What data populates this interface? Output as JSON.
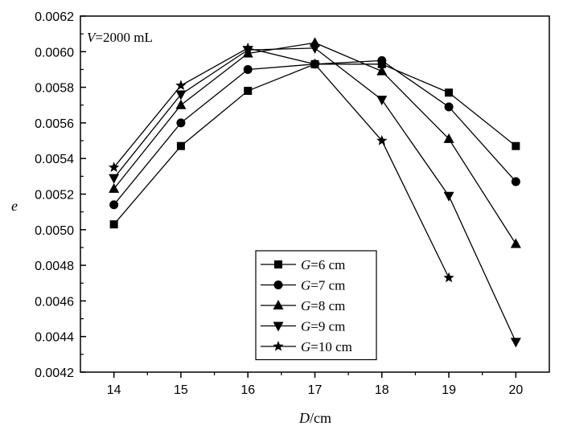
{
  "chart_data": {
    "type": "line",
    "title": "",
    "annotation": {
      "var": "V",
      "rest": "=2000 mL"
    },
    "xlabel": {
      "var": "D",
      "rest": "/cm"
    },
    "ylabel": {
      "var": "e",
      "rest": ""
    },
    "xlim": [
      13.5,
      20.5
    ],
    "ylim": [
      0.0042,
      0.0062
    ],
    "xticks": [
      14,
      15,
      16,
      17,
      18,
      19,
      20
    ],
    "yticks": [
      0.0042,
      0.0044,
      0.0046,
      0.0048,
      0.005,
      0.0052,
      0.0054,
      0.0056,
      0.0058,
      0.006,
      0.0062
    ],
    "ytick_labels": [
      "0.0042",
      "0.0044",
      "0.0046",
      "0.0048",
      "0.0050",
      "0.0052",
      "0.0054",
      "0.0056",
      "0.0058",
      "0.0060",
      "0.0062"
    ],
    "grid": false,
    "legend_position": "bottom-center",
    "series": [
      {
        "name_var": "G",
        "name_rest": "=6 cm",
        "marker": "square",
        "x": [
          14,
          15,
          16,
          17,
          18,
          19,
          20
        ],
        "y": [
          0.00503,
          0.00547,
          0.00578,
          0.00593,
          0.00593,
          0.00577,
          0.00547
        ]
      },
      {
        "name_var": "G",
        "name_rest": "=7 cm",
        "marker": "circle",
        "x": [
          14,
          15,
          16,
          17,
          18,
          19,
          20
        ],
        "y": [
          0.00514,
          0.0056,
          0.0059,
          0.00593,
          0.00595,
          0.00569,
          0.00527
        ]
      },
      {
        "name_var": "G",
        "name_rest": "=8 cm",
        "marker": "triangle-up",
        "x": [
          14,
          15,
          16,
          17,
          18,
          19,
          20
        ],
        "y": [
          0.00523,
          0.0057,
          0.00599,
          0.00605,
          0.00589,
          0.00551,
          0.00492
        ]
      },
      {
        "name_var": "G",
        "name_rest": "=9 cm",
        "marker": "triangle-down",
        "x": [
          14,
          15,
          16,
          17,
          18,
          19,
          20
        ],
        "y": [
          0.00529,
          0.00576,
          0.00601,
          0.00602,
          0.00573,
          0.00519,
          0.00437
        ]
      },
      {
        "name_var": "G",
        "name_rest": "=10 cm",
        "marker": "star",
        "x": [
          14,
          15,
          16,
          17,
          18,
          19
        ],
        "y": [
          0.00535,
          0.00581,
          0.00602,
          0.00593,
          0.0055,
          0.00473
        ]
      }
    ]
  }
}
